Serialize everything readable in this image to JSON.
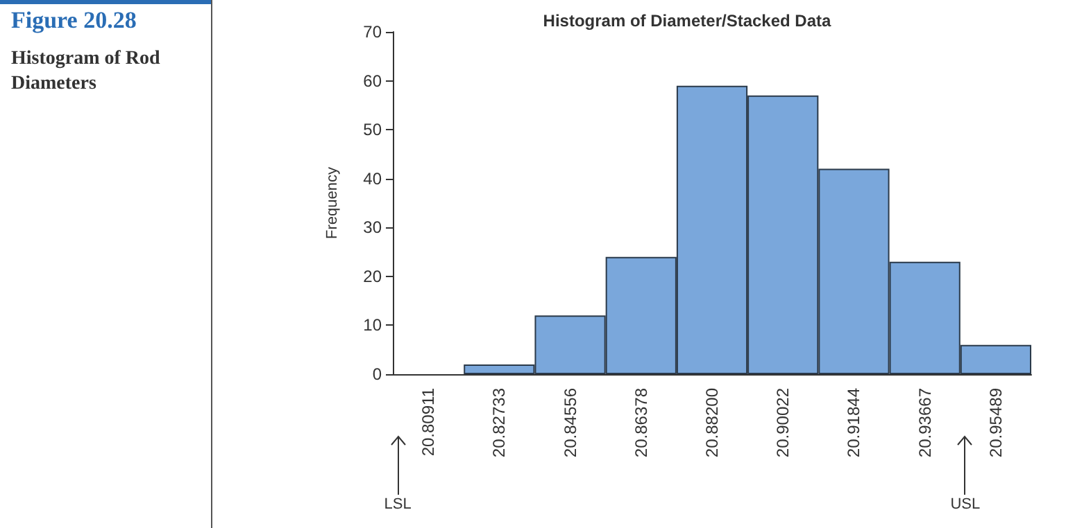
{
  "chart_data": {
    "type": "bar",
    "title": "Histogram of Diameter/Stacked Data",
    "ylabel": "Frequency",
    "categories": [
      "20.80911",
      "20.82733",
      "20.84556",
      "20.86378",
      "20.88200",
      "20.90022",
      "20.91844",
      "20.93667",
      "20.95489"
    ],
    "values": [
      0,
      2,
      12,
      24,
      59,
      57,
      42,
      23,
      6
    ],
    "color": "#7aa7db",
    "ylim": [
      0,
      70
    ],
    "yticks": [
      0,
      10,
      20,
      30,
      40,
      50,
      60,
      70
    ],
    "grid": false,
    "annotations": [
      "Figure 20.28",
      "Histogram of Rod Diameters",
      "LSL",
      "USL"
    ]
  }
}
